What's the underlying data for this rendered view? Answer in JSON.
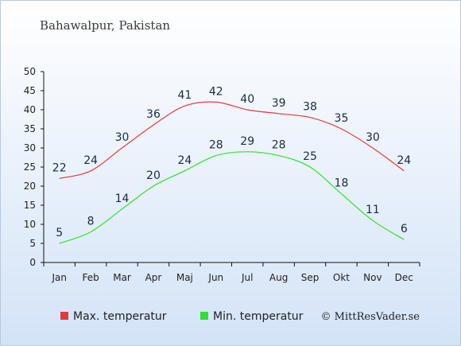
{
  "chart_data": {
    "type": "line",
    "title": "Bahawalpur, Pakistan",
    "categories": [
      "Jan",
      "Feb",
      "Mar",
      "Apr",
      "Maj",
      "Jun",
      "Jul",
      "Aug",
      "Sep",
      "Okt",
      "Nov",
      "Dec"
    ],
    "series": [
      {
        "name": "Max. temperatur",
        "color": "#e8383b",
        "values": [
          22,
          24,
          30,
          36,
          41,
          42,
          40,
          39,
          38,
          35,
          30,
          24
        ]
      },
      {
        "name": "Min. temperatur",
        "color": "#33dd33",
        "values": [
          5,
          8,
          14,
          20,
          24,
          28,
          29,
          28,
          25,
          18,
          11,
          6
        ]
      }
    ],
    "ylim": [
      0,
      50
    ],
    "yticks": [
      0,
      5,
      10,
      15,
      20,
      25,
      30,
      35,
      40,
      45,
      50
    ],
    "grid": false,
    "legend": "bottom-left",
    "background_top": "#ffffff",
    "background_bottom": "#d3e3f7"
  },
  "credit": "© MittResVader.se"
}
